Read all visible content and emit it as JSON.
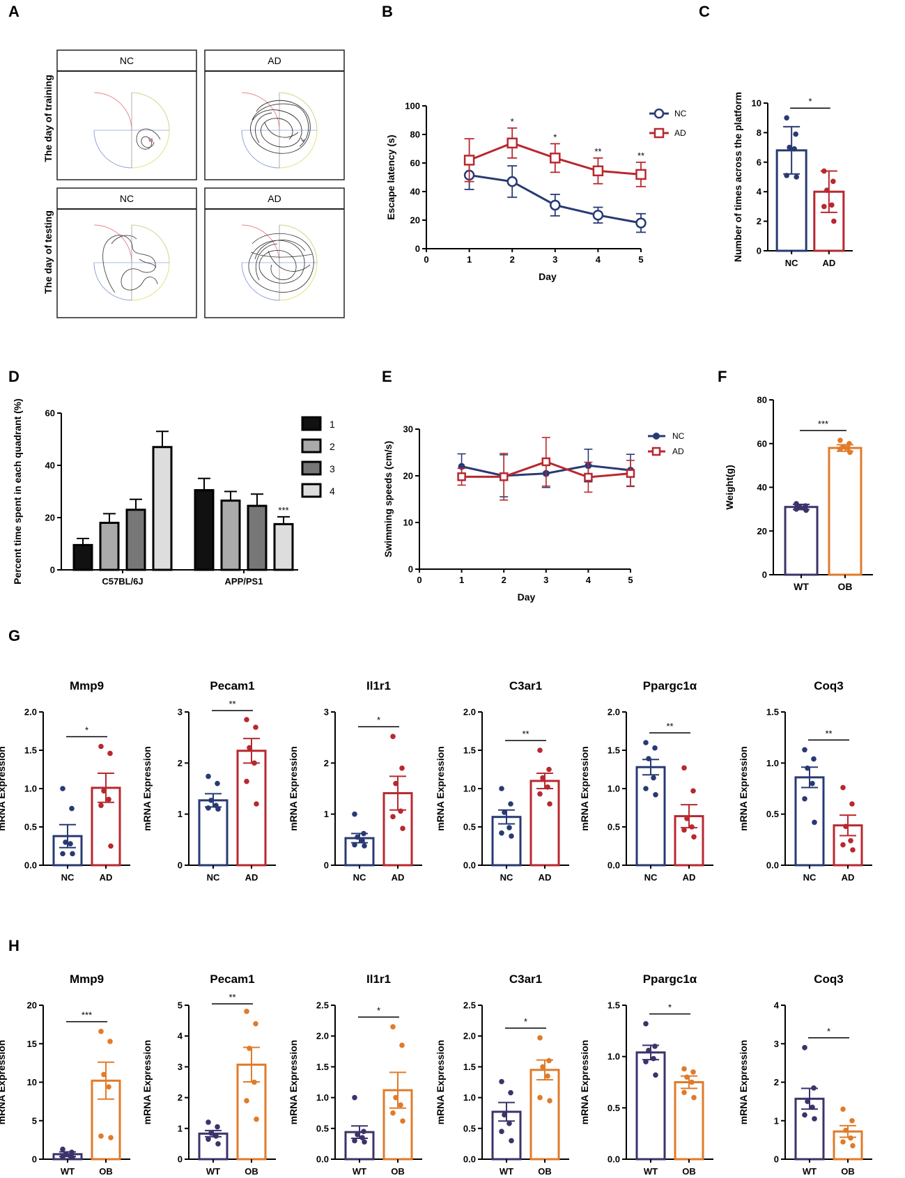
{
  "colors": {
    "nc": "#283a73",
    "ad": "#b8282f",
    "wt": "#3d3269",
    "ob": "#e07b2a",
    "bar1": "#111111",
    "bar2": "#aaaaaa",
    "bar3": "#777777",
    "bar4": "#dddddd"
  },
  "panel_labels": {
    "A": "A",
    "B": "B",
    "C": "C",
    "D": "D",
    "E": "E",
    "F": "F",
    "G": "G",
    "H": "H"
  },
  "panelA": {
    "headers": [
      "NC",
      "AD",
      "NC",
      "AD"
    ],
    "row_labels": [
      "The day of training",
      "The day of testing"
    ]
  },
  "chart_data": [
    {
      "id": "B",
      "type": "line",
      "xlabel": "Day",
      "ylabel": "Escape latency (s)",
      "xlim": [
        0,
        5
      ],
      "ylim": [
        0,
        100
      ],
      "xticks": [
        0,
        1,
        2,
        3,
        4,
        5
      ],
      "yticks": [
        0,
        20,
        40,
        60,
        80,
        100
      ],
      "legend": "top-right",
      "series": [
        {
          "name": "NC",
          "x": [
            1,
            2,
            3,
            4,
            5
          ],
          "values": [
            51.5,
            47,
            30.5,
            23.5,
            18
          ],
          "err": [
            10,
            11,
            7.5,
            5.5,
            6.5
          ]
        },
        {
          "name": "AD",
          "x": [
            1,
            2,
            3,
            4,
            5
          ],
          "values": [
            62,
            74,
            63.5,
            54.5,
            52
          ],
          "err": [
            15,
            10.5,
            10,
            9,
            8.5
          ]
        }
      ],
      "sig": [
        {
          "x": 2,
          "text": "*"
        },
        {
          "x": 3,
          "text": "*"
        },
        {
          "x": 4,
          "text": "**"
        },
        {
          "x": 5,
          "text": "**"
        }
      ]
    },
    {
      "id": "C",
      "type": "bar",
      "ylabel": "Number of times across the platform",
      "categories": [
        "NC",
        "AD"
      ],
      "values": [
        6.8,
        4.0
      ],
      "err": [
        1.6,
        1.4
      ],
      "ylim": [
        0,
        10
      ],
      "yticks": [
        0,
        2,
        4,
        6,
        8,
        10
      ],
      "points": [
        [
          9.0,
          7.9,
          7.0,
          6.9,
          5.1,
          5.0
        ],
        [
          5.4,
          4.7,
          4.1,
          3.1,
          3.0,
          2.0
        ]
      ],
      "sig": "*"
    },
    {
      "id": "D",
      "type": "bar",
      "ylabel": "Percent time spent in each quadrant (%)",
      "groups": [
        "C57BL/6J",
        "APP/PS1"
      ],
      "legend_title": "",
      "series": [
        {
          "name": "1",
          "values": [
            9.5,
            30.5
          ],
          "err": [
            2.5,
            4.5
          ]
        },
        {
          "name": "2",
          "values": [
            18,
            26.5
          ],
          "err": [
            3.5,
            3.5
          ]
        },
        {
          "name": "3",
          "values": [
            23,
            24.5
          ],
          "err": [
            4,
            4.5
          ]
        },
        {
          "name": "4",
          "values": [
            47,
            17.5
          ],
          "err": [
            6,
            2.8
          ]
        }
      ],
      "ylim": [
        0,
        60
      ],
      "yticks": [
        0,
        20,
        40,
        60
      ],
      "sig": "***"
    },
    {
      "id": "E",
      "type": "line",
      "xlabel": "Day",
      "ylabel": "Swimming speeds (cm/s)",
      "xlim": [
        0,
        5
      ],
      "ylim": [
        0,
        30
      ],
      "xticks": [
        0,
        1,
        2,
        3,
        4,
        5
      ],
      "yticks": [
        0,
        10,
        20,
        30
      ],
      "series": [
        {
          "name": "NC",
          "x": [
            1,
            2,
            3,
            4,
            5
          ],
          "values": [
            22,
            20,
            20.5,
            22.2,
            21.2
          ],
          "err": [
            2.7,
            4.5,
            3,
            3.5,
            3.4
          ]
        },
        {
          "name": "AD",
          "x": [
            1,
            2,
            3,
            4,
            5
          ],
          "values": [
            19.8,
            19.8,
            23,
            19.7,
            20.5
          ],
          "err": [
            1.8,
            5,
            5.2,
            3.2,
            2.8
          ]
        }
      ]
    },
    {
      "id": "F",
      "type": "bar",
      "ylabel": "Weight(g)",
      "categories": [
        "WT",
        "OB"
      ],
      "values": [
        31,
        58
      ],
      "err": [
        1.2,
        1.5
      ],
      "ylim": [
        0,
        80
      ],
      "yticks": [
        0,
        20,
        40,
        60,
        80
      ],
      "points": [
        [
          32.5,
          31.5,
          31,
          30.5,
          30,
          29.5
        ],
        [
          61.5,
          60,
          58.5,
          58,
          57.5,
          56
        ]
      ],
      "sig": "***"
    },
    {
      "id": "G-Mmp9",
      "type": "bar",
      "title": "Mmp9",
      "ylabel": "mRNA Expression",
      "categories": [
        "NC",
        "AD"
      ],
      "values": [
        0.38,
        1.01
      ],
      "err": [
        0.15,
        0.19
      ],
      "ylim": [
        0,
        2.0
      ],
      "yticks": [
        "0.0",
        "0.5",
        "1.0",
        "1.5",
        "2.0"
      ],
      "points": [
        [
          1.0,
          0.74,
          0.3,
          0.28,
          0.15,
          0.15
        ],
        [
          1.55,
          1.46,
          0.97,
          0.86,
          0.78,
          0.25
        ]
      ],
      "sig": "*"
    },
    {
      "id": "G-Pecam1",
      "type": "bar",
      "title": "Pecam1",
      "ylabel": "mRNA Expression",
      "categories": [
        "NC",
        "AD"
      ],
      "values": [
        1.27,
        2.24
      ],
      "err": [
        0.13,
        0.24
      ],
      "ylim": [
        0,
        3
      ],
      "yticks": [
        "0",
        "1",
        "2",
        "3"
      ],
      "points": [
        [
          1.74,
          1.6,
          1.27,
          1.17,
          1.12,
          1.1
        ],
        [
          2.85,
          2.7,
          2.3,
          2.0,
          1.64,
          1.2
        ]
      ],
      "sig": "**"
    },
    {
      "id": "G-Il1r1",
      "type": "bar",
      "title": "Il1r1",
      "ylabel": "mRNA Expression",
      "categories": [
        "NC",
        "AD"
      ],
      "values": [
        0.53,
        1.41
      ],
      "err": [
        0.09,
        0.33
      ],
      "ylim": [
        0,
        3
      ],
      "yticks": [
        "0",
        "1",
        "2",
        "3"
      ],
      "points": [
        [
          1.0,
          0.62,
          0.55,
          0.48,
          0.4,
          0.38
        ],
        [
          2.52,
          1.9,
          1.6,
          1.06,
          0.95,
          0.72
        ]
      ],
      "sig": "*"
    },
    {
      "id": "G-C3ar1",
      "type": "bar",
      "title": "C3ar1",
      "ylabel": "mRNA Expression",
      "categories": [
        "NC",
        "AD"
      ],
      "values": [
        0.63,
        1.1
      ],
      "err": [
        0.09,
        0.1
      ],
      "ylim": [
        0,
        2.0
      ],
      "yticks": [
        "0.0",
        "0.5",
        "1.0",
        "1.5",
        "2.0"
      ],
      "points": [
        [
          1.0,
          0.8,
          0.69,
          0.49,
          0.42,
          0.38
        ],
        [
          1.5,
          1.25,
          1.14,
          1.02,
          0.93,
          0.8
        ]
      ],
      "sig": "**"
    },
    {
      "id": "G-Ppargc1a",
      "type": "bar",
      "title": "Ppargc1α",
      "ylabel": "mRNA Expression",
      "categories": [
        "NC",
        "AD"
      ],
      "values": [
        1.28,
        0.64
      ],
      "err": [
        0.1,
        0.15
      ],
      "ylim": [
        0,
        2.0
      ],
      "yticks": [
        "0.0",
        "0.5",
        "1.0",
        "1.5",
        "2.0"
      ],
      "points": [
        [
          1.6,
          1.53,
          1.39,
          1.14,
          1.0,
          0.92
        ],
        [
          1.27,
          0.97,
          0.61,
          0.5,
          0.46,
          0.37
        ]
      ],
      "sig": "**"
    },
    {
      "id": "G-Coq3",
      "type": "bar",
      "title": "Coq3",
      "ylabel": "mRNA Expression",
      "categories": [
        "NC",
        "AD"
      ],
      "values": [
        0.86,
        0.39
      ],
      "err": [
        0.1,
        0.1
      ],
      "ylim": [
        0,
        1.5
      ],
      "yticks": [
        "0.0",
        "0.5",
        "1.0",
        "1.5"
      ],
      "points": [
        [
          1.13,
          1.04,
          0.95,
          0.8,
          0.65,
          0.42
        ],
        [
          0.76,
          0.6,
          0.38,
          0.24,
          0.2,
          0.15
        ]
      ],
      "sig": "**"
    },
    {
      "id": "H-Mmp9",
      "type": "bar",
      "title": "Mmp9",
      "ylabel": "mRNA Expression",
      "categories": [
        "WT",
        "OB"
      ],
      "values": [
        0.65,
        10.2
      ],
      "err": [
        0.3,
        2.4
      ],
      "ylim": [
        0,
        20
      ],
      "yticks": [
        "0",
        "5",
        "10",
        "15",
        "20"
      ],
      "points": [
        [
          1.3,
          0.9,
          0.6,
          0.4,
          0.3,
          0.2
        ],
        [
          16.6,
          15.3,
          11.0,
          9.4,
          3.0,
          2.8
        ]
      ],
      "sig": "***"
    },
    {
      "id": "H-Pecam1",
      "type": "bar",
      "title": "Pecam1",
      "ylabel": "mRNA Expression",
      "categories": [
        "WT",
        "OB"
      ],
      "values": [
        0.83,
        3.07
      ],
      "err": [
        0.1,
        0.56
      ],
      "ylim": [
        0,
        5
      ],
      "yticks": [
        "0",
        "1",
        "2",
        "3",
        "4",
        "5"
      ],
      "points": [
        [
          1.2,
          1.05,
          0.85,
          0.75,
          0.65,
          0.5
        ],
        [
          4.8,
          4.4,
          3.6,
          2.5,
          1.9,
          1.3
        ]
      ],
      "sig": "**"
    },
    {
      "id": "H-Il1r1",
      "type": "bar",
      "title": "Il1r1",
      "ylabel": "mRNA Expression",
      "categories": [
        "WT",
        "OB"
      ],
      "values": [
        0.44,
        1.12
      ],
      "err": [
        0.1,
        0.29
      ],
      "ylim": [
        0,
        2.5
      ],
      "yticks": [
        "0.0",
        "0.5",
        "1.0",
        "1.5",
        "2.0",
        "2.5"
      ],
      "points": [
        [
          1.0,
          0.45,
          0.4,
          0.35,
          0.3,
          0.28
        ],
        [
          2.15,
          1.85,
          1.0,
          0.88,
          0.75,
          0.62
        ]
      ],
      "sig": "*"
    },
    {
      "id": "H-C3ar1",
      "type": "bar",
      "title": "C3ar1",
      "ylabel": "mRNA Expression",
      "categories": [
        "WT",
        "OB"
      ],
      "values": [
        0.77,
        1.45
      ],
      "err": [
        0.15,
        0.16
      ],
      "ylim": [
        0,
        2.5
      ],
      "yticks": [
        "0.0",
        "0.5",
        "1.0",
        "1.5",
        "2.0",
        "2.5"
      ],
      "points": [
        [
          1.26,
          1.08,
          0.72,
          0.58,
          0.45,
          0.3
        ],
        [
          1.97,
          1.6,
          1.5,
          1.35,
          1.0,
          0.95
        ]
      ],
      "sig": "*"
    },
    {
      "id": "H-Ppargc1a",
      "type": "bar",
      "title": "Ppargc1α",
      "ylabel": "mRNA Expression",
      "categories": [
        "WT",
        "OB"
      ],
      "values": [
        1.04,
        0.75
      ],
      "err": [
        0.07,
        0.06
      ],
      "ylim": [
        0,
        1.5
      ],
      "yticks": [
        "0.0",
        "0.5",
        "1.0",
        "1.5"
      ],
      "points": [
        [
          1.32,
          1.1,
          1.06,
          0.98,
          0.95,
          0.82
        ],
        [
          0.88,
          0.85,
          0.8,
          0.75,
          0.65,
          0.6
        ]
      ],
      "sig": "*"
    },
    {
      "id": "H-Coq3",
      "type": "bar",
      "title": "Coq3",
      "ylabel": "mRNA Expression",
      "categories": [
        "WT",
        "OB"
      ],
      "values": [
        1.57,
        0.72
      ],
      "err": [
        0.27,
        0.15
      ],
      "ylim": [
        0,
        4
      ],
      "yticks": [
        "0",
        "1",
        "2",
        "3",
        "4"
      ],
      "points": [
        [
          2.9,
          1.85,
          1.5,
          1.35,
          1.15,
          1.05
        ],
        [
          1.3,
          1.0,
          0.75,
          0.55,
          0.45,
          0.35
        ]
      ],
      "sig": "*"
    }
  ]
}
